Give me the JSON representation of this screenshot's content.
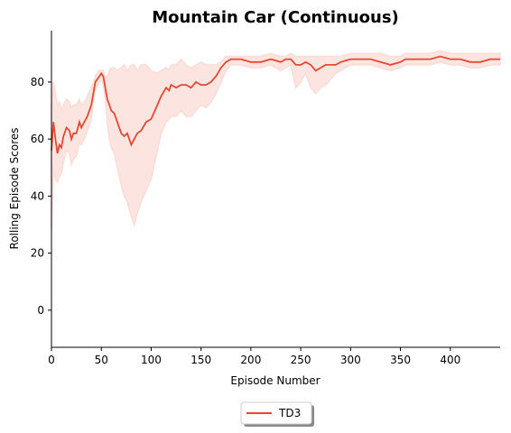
{
  "chart_data": {
    "type": "line",
    "title": "Mountain Car (Continuous)",
    "xlabel": "Episode Number",
    "ylabel": "Rolling Episode Scores",
    "xlim": [
      0,
      450
    ],
    "ylim": [
      -13,
      98
    ],
    "xticks": [
      0,
      50,
      100,
      150,
      200,
      250,
      300,
      350,
      400
    ],
    "yticks": [
      0,
      20,
      40,
      60,
      80
    ],
    "grid": false,
    "legend_position": "bottom-center",
    "series": [
      {
        "name": "TD3",
        "color": "#e24a33",
        "band_color": "#fbdcd7",
        "x": [
          0,
          2,
          4,
          6,
          8,
          10,
          12,
          15,
          18,
          20,
          22,
          25,
          28,
          30,
          33,
          36,
          40,
          44,
          48,
          50,
          52,
          54,
          56,
          58,
          60,
          63,
          66,
          70,
          73,
          76,
          80,
          83,
          86,
          90,
          95,
          100,
          105,
          110,
          115,
          118,
          120,
          125,
          130,
          135,
          140,
          145,
          150,
          155,
          160,
          165,
          170,
          175,
          180,
          190,
          200,
          210,
          220,
          230,
          235,
          240,
          245,
          250,
          255,
          260,
          265,
          270,
          275,
          280,
          285,
          290,
          300,
          310,
          320,
          330,
          340,
          350,
          355,
          360,
          370,
          380,
          390,
          400,
          410,
          420,
          430,
          440,
          450
        ],
        "mean": [
          56,
          66,
          60,
          55,
          58,
          57,
          61,
          64,
          63,
          60,
          62,
          62,
          66,
          64,
          66,
          68,
          72,
          80,
          82,
          83,
          82,
          78,
          74,
          72,
          70,
          69,
          66,
          62,
          61,
          62,
          58,
          60,
          62,
          63,
          66,
          67,
          71,
          75,
          78,
          77,
          79,
          78,
          79,
          79,
          78,
          80,
          79,
          79,
          80,
          82,
          85,
          87,
          88,
          88,
          87,
          87,
          88,
          87,
          88,
          88,
          86,
          86,
          87,
          86,
          84,
          85,
          86,
          86,
          86,
          87,
          88,
          88,
          88,
          87,
          86,
          87,
          88,
          88,
          88,
          88,
          89,
          88,
          88,
          87,
          87,
          88,
          88
        ],
        "upper": [
          72,
          80,
          76,
          72,
          73,
          70,
          72,
          74,
          73,
          71,
          72,
          72,
          74,
          72,
          73,
          75,
          78,
          82,
          84,
          84,
          84,
          82,
          82,
          84,
          85,
          85,
          84,
          85,
          86,
          84,
          86,
          86,
          84,
          86,
          86,
          84,
          83,
          84,
          85,
          84,
          86,
          86,
          88,
          86,
          85,
          86,
          87,
          86,
          86,
          86,
          87,
          89,
          89,
          89,
          89,
          89,
          90,
          89,
          89,
          90,
          89,
          89,
          89,
          89,
          89,
          89,
          89,
          89,
          89,
          89,
          90,
          90,
          90,
          90,
          89,
          89,
          90,
          90,
          90,
          90,
          91,
          90,
          90,
          90,
          90,
          90,
          90
        ],
        "lower": [
          28,
          50,
          46,
          45,
          47,
          48,
          52,
          56,
          55,
          51,
          53,
          54,
          59,
          58,
          60,
          63,
          67,
          77,
          80,
          81,
          79,
          74,
          66,
          60,
          57,
          55,
          50,
          44,
          40,
          38,
          33,
          30,
          34,
          38,
          42,
          46,
          54,
          62,
          66,
          67,
          68,
          68,
          70,
          68,
          68,
          70,
          72,
          71,
          73,
          76,
          80,
          84,
          86,
          86,
          85,
          85,
          86,
          84,
          85,
          86,
          78,
          80,
          83,
          78,
          76,
          78,
          79,
          81,
          83,
          84,
          86,
          86,
          86,
          85,
          84,
          85,
          86,
          86,
          86,
          86,
          87,
          86,
          86,
          85,
          85,
          86,
          86
        ]
      }
    ]
  }
}
